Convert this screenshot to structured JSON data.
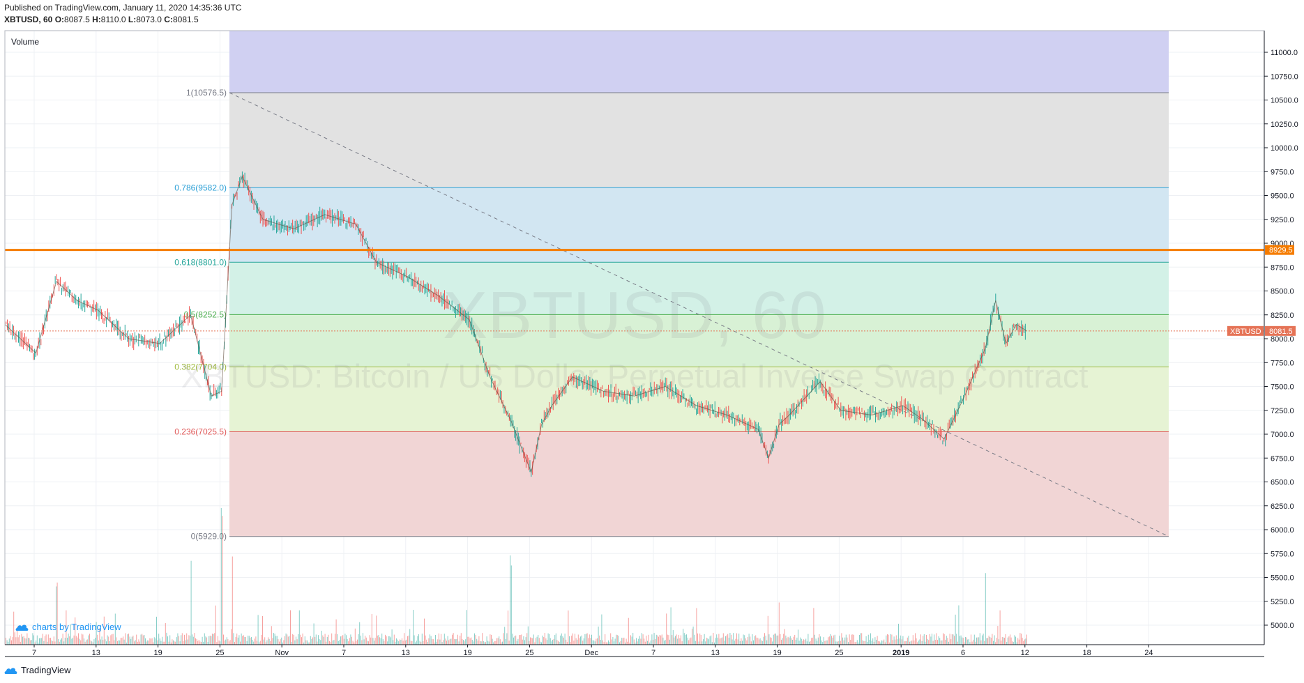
{
  "header": {
    "published": "Published on TradingView.com, January 11, 2020 14:35:36 UTC",
    "symbol_tf": "XBTUSD, 60",
    "open_label": "O:",
    "open": "8087.5",
    "high_label": "H:",
    "high": "8110.0",
    "low_label": "L:",
    "low": "8073.0",
    "close_label": "C:",
    "close": "8081.5"
  },
  "pane_label": "Volume",
  "watermark": {
    "symbol": "XBTUSD, 60",
    "description": "XBTUSD: Bitcoin / US Dollar Perpetual Inverse Swap Contract"
  },
  "branding": {
    "charts_by": "charts by TradingView",
    "footer": "TradingView"
  },
  "colors": {
    "up": "#26a69a",
    "down": "#ef5350",
    "orange_line": "#f57c00",
    "price_tag": "#e57356",
    "grid": "#eef0f4"
  },
  "chart_data": {
    "type": "line",
    "series": [
      {
        "name": "XBTUSD",
        "x": [
          "2019-10-04",
          "2019-10-07",
          "2019-10-09",
          "2019-10-11",
          "2019-10-13",
          "2019-10-16",
          "2019-10-19",
          "2019-10-22",
          "2019-10-24",
          "2019-10-25",
          "2019-10-26",
          "2019-10-27",
          "2019-10-29",
          "2019-11-01",
          "2019-11-04",
          "2019-11-07",
          "2019-11-09",
          "2019-11-12",
          "2019-11-15",
          "2019-11-18",
          "2019-11-20",
          "2019-11-22",
          "2019-11-24",
          "2019-11-25",
          "2019-11-26",
          "2019-11-28",
          "2019-12-01",
          "2019-12-04",
          "2019-12-07",
          "2019-12-10",
          "2019-12-13",
          "2019-12-16",
          "2019-12-17",
          "2019-12-18",
          "2019-12-19",
          "2019-12-22",
          "2019-12-24",
          "2019-12-27",
          "2019-12-30",
          "2020-01-01",
          "2020-01-03",
          "2020-01-05",
          "2020-01-07",
          "2020-01-08",
          "2020-01-09",
          "2020-01-10",
          "2020-01-11"
        ],
        "y": [
          8150,
          7850,
          8600,
          8400,
          8300,
          8000,
          7950,
          8250,
          7400,
          7450,
          9400,
          9700,
          9250,
          9150,
          9300,
          9200,
          8800,
          8650,
          8450,
          8200,
          7600,
          7150,
          6600,
          7100,
          7300,
          7600,
          7450,
          7400,
          7500,
          7300,
          7200,
          7050,
          6750,
          7100,
          7200,
          7550,
          7250,
          7200,
          7300,
          7150,
          6950,
          7400,
          7900,
          8400,
          7950,
          8150,
          8081.5
        ]
      }
    ],
    "volume": {
      "x": [
        "2019-10-09",
        "2019-10-22",
        "2019-10-25",
        "2019-10-26",
        "2019-11-22",
        "2019-12-18",
        "2020-01-07"
      ],
      "values": [
        3.5,
        4.8,
        9,
        6,
        5.5,
        3,
        3.8
      ]
    },
    "fibonacci": [
      {
        "level": "1",
        "price": 10576.5,
        "label": "1(10576.5)",
        "color": "#787b86"
      },
      {
        "level": "0.786",
        "price": 9582.0,
        "label": "0.786(9582.0)",
        "color": "#2a9fd6"
      },
      {
        "level": "0.618",
        "price": 8801.0,
        "label": "0.618(8801.0)",
        "color": "#26a69a"
      },
      {
        "level": "0.5",
        "price": 8252.5,
        "label": "0.5(8252.5)",
        "color": "#4caf50"
      },
      {
        "level": "0.382",
        "price": 7704.0,
        "label": "0.382(7704.0)",
        "color": "#9eb93b"
      },
      {
        "level": "0.236",
        "price": 7025.5,
        "label": "0.236(7025.5)",
        "color": "#e05858"
      },
      {
        "level": "0",
        "price": 5929.0,
        "label": "0(5929.0)",
        "color": "#787b86"
      }
    ],
    "fib_zone_colors": [
      "#d0d0f2",
      "#e2e2e2",
      "#d2e6f2",
      "#d3f1e7",
      "#d8f1d5",
      "#e6f3d4",
      "#f1d5d5"
    ],
    "horizontal_line": {
      "price": 8929.5,
      "label": "8929.5",
      "color": "#f57c00"
    },
    "last_price": {
      "price": 8081.5,
      "symbol": "XBTUSD",
      "label": "8081.5"
    },
    "y_ticks": [
      "11000.0",
      "10750.0",
      "10500.0",
      "10250.0",
      "10000.0",
      "9750.0",
      "9500.0",
      "9250.0",
      "9000.0",
      "8750.0",
      "8500.0",
      "8250.0",
      "8000.0",
      "7750.0",
      "7500.0",
      "7250.0",
      "7000.0",
      "6750.0",
      "6500.0",
      "6250.0",
      "6000.0",
      "5750.0",
      "5500.0",
      "5250.0",
      "5000.0"
    ],
    "x_ticks": [
      "7",
      "13",
      "19",
      "25",
      "Nov",
      "7",
      "13",
      "19",
      "25",
      "Dec",
      "7",
      "13",
      "19",
      "25",
      "2019",
      "6",
      "12",
      "18",
      "24"
    ],
    "x_tick_bold": [
      false,
      false,
      false,
      false,
      false,
      false,
      false,
      false,
      false,
      false,
      false,
      false,
      false,
      false,
      true,
      false,
      false,
      false,
      false
    ],
    "ylim": [
      4850,
      11300
    ],
    "grid": true
  }
}
